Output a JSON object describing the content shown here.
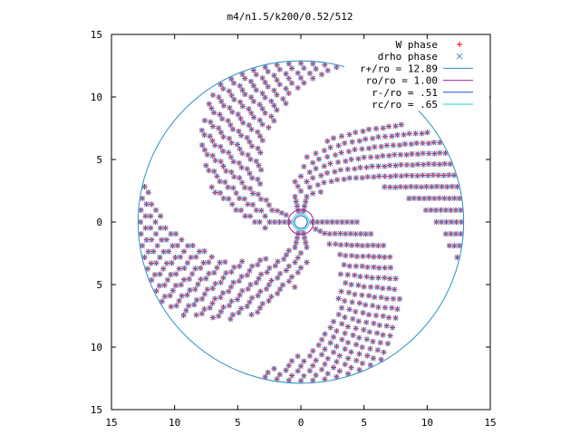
{
  "chart_data": {
    "type": "scatter",
    "title": "m4/n1.5/k200/0.52/512",
    "xlabel": "",
    "ylabel": "",
    "xlim": [
      -15,
      15
    ],
    "ylim": [
      -15,
      15
    ],
    "grid": false,
    "legend_position": "top-right",
    "xtick_values": [
      -15,
      -10,
      -5,
      0,
      5,
      10,
      15
    ],
    "xtick_labels": [
      "15",
      "10",
      "5",
      "0",
      "5",
      "10",
      "15"
    ],
    "ytick_values": [
      15,
      10,
      5,
      0,
      -5,
      -10,
      -15
    ],
    "ytick_labels": [
      "15",
      "10",
      "5",
      "0",
      "5",
      "10",
      "15"
    ],
    "series": [
      {
        "name": "W phase",
        "marker": "plus",
        "color": "#ff0000"
      },
      {
        "name": "drho phase",
        "marker": "cross",
        "color": "#3a8de8"
      },
      {
        "name": "r+/ro = 12.89",
        "marker": "line",
        "color": "#2f8fc8",
        "radius": 12.89
      },
      {
        "name": "ro/ro = 1.00",
        "marker": "line",
        "color": "#a020a0",
        "radius": 1.0
      },
      {
        "name": "r-/ro = .51",
        "marker": "line",
        "color": "#1a4ed8",
        "radius": 0.51
      },
      {
        "name": "rc/ro = .65",
        "marker": "line",
        "color": "#22d0d0",
        "radius": 0.65
      }
    ],
    "pattern": {
      "n_rings": 31,
      "r_inner": 0.9,
      "r_outer": 12.7,
      "m": 4,
      "spiral_turns": 0.9
    }
  }
}
